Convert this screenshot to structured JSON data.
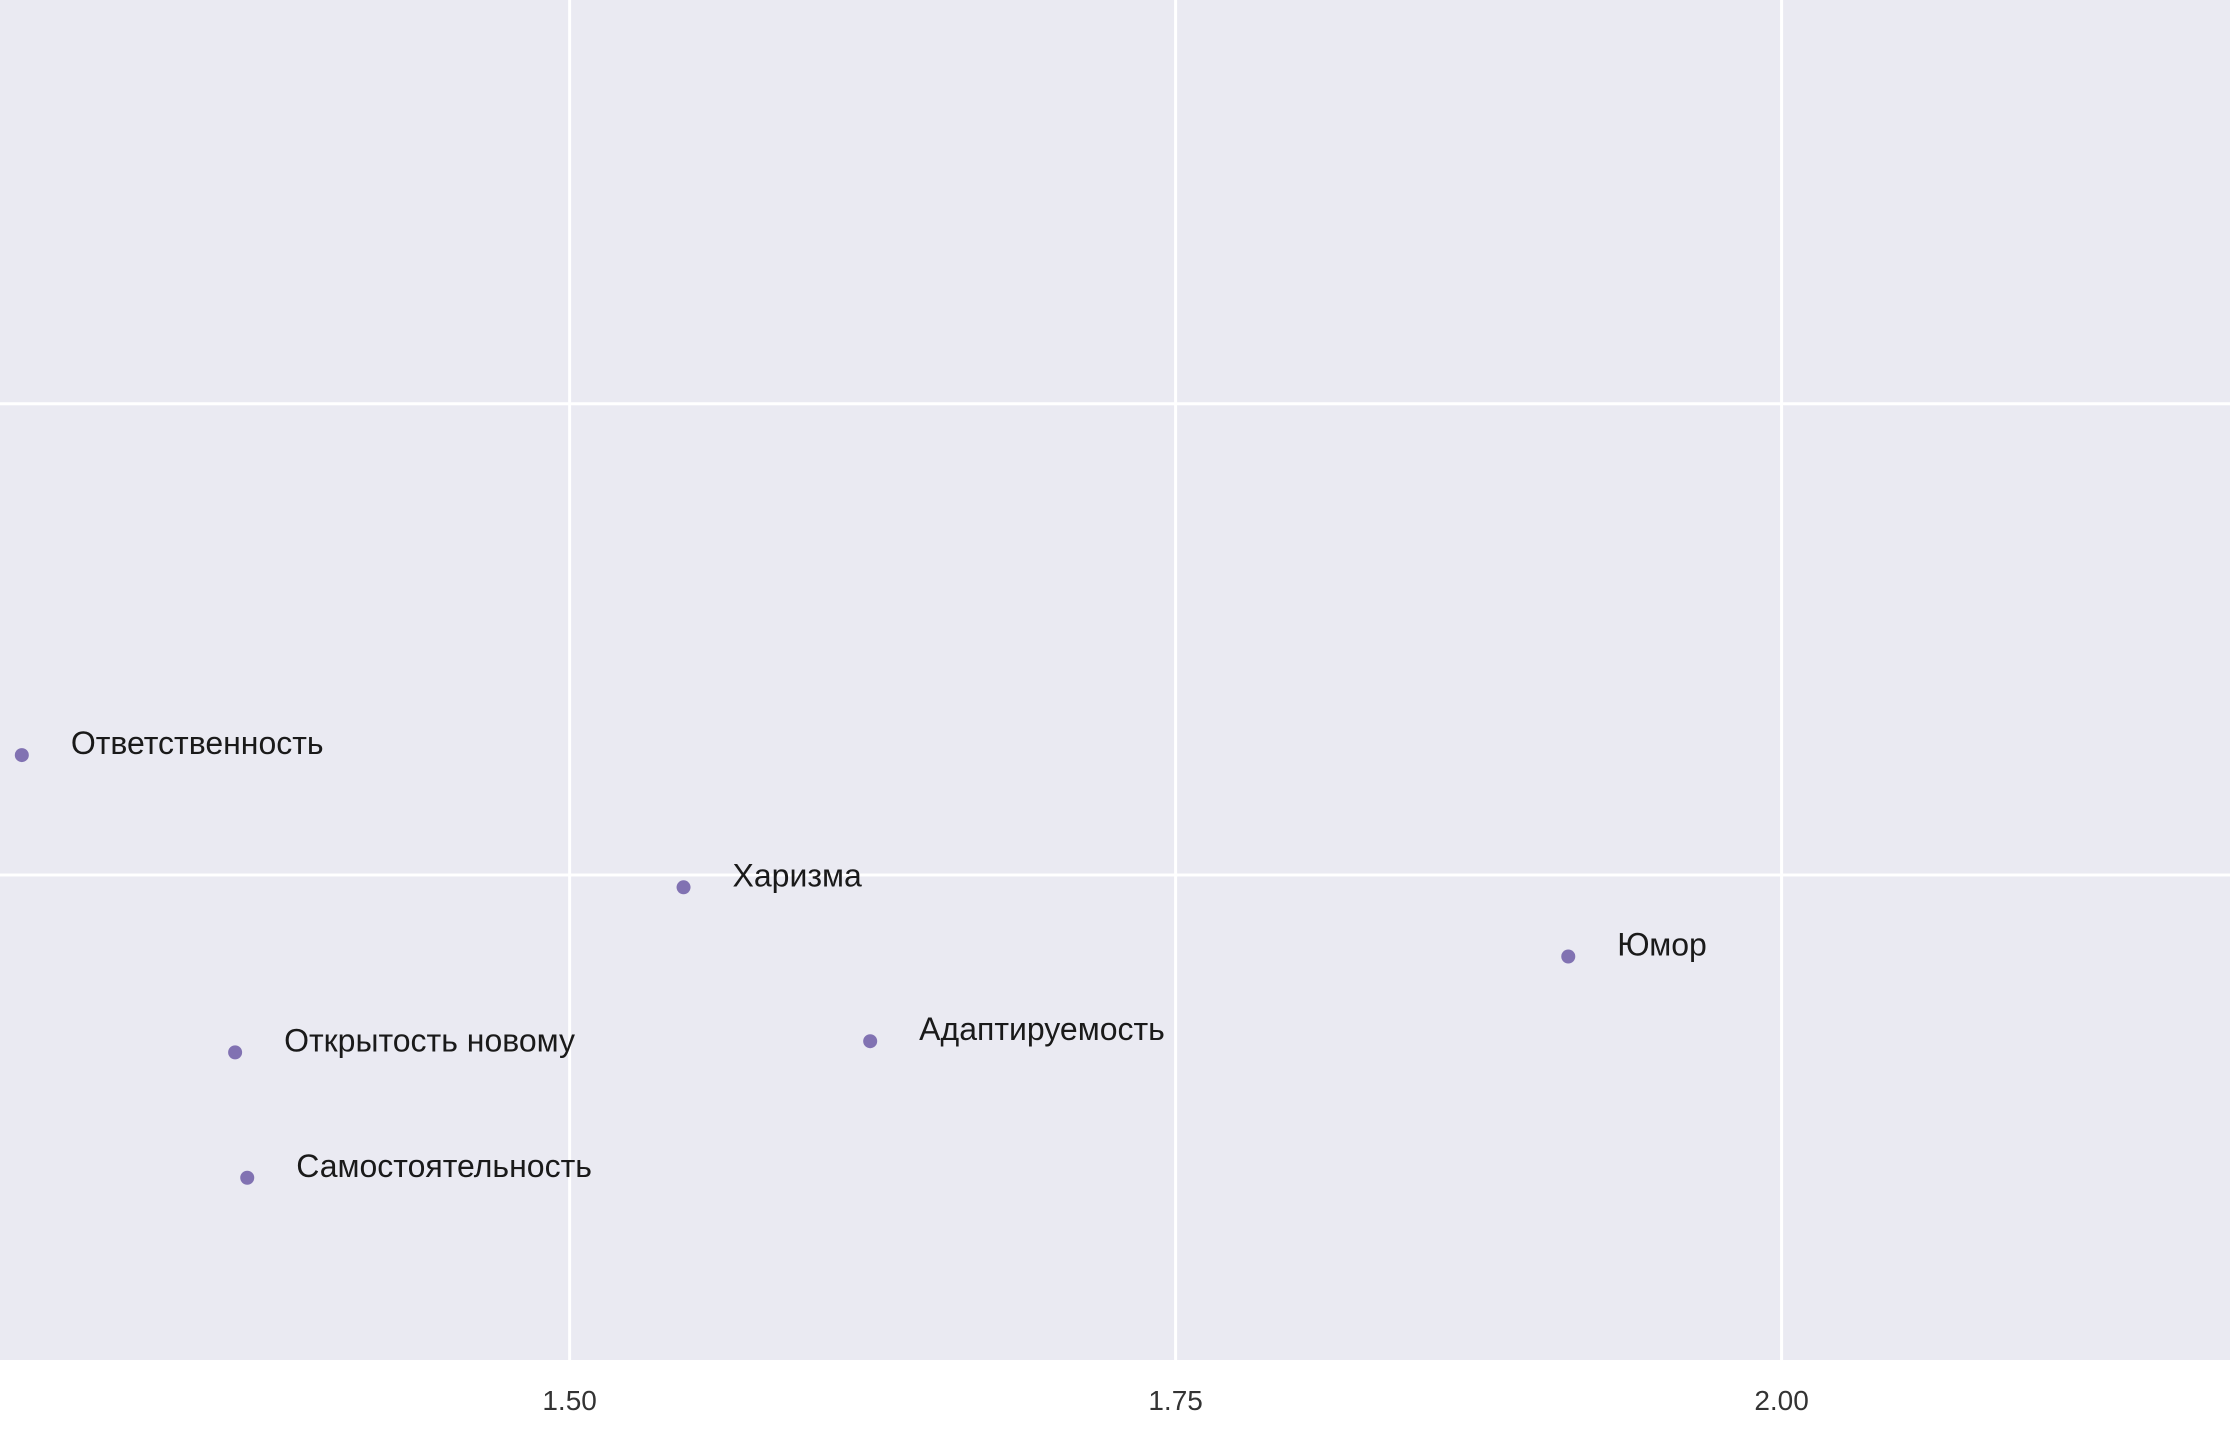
{
  "chart_data": {
    "type": "scatter",
    "title": "",
    "xlabel": "",
    "ylabel": "",
    "xlim": [
      1.265,
      2.185
    ],
    "ylim": [
      0.0,
      1.0
    ],
    "grid": true,
    "x_ticks": [
      {
        "value": 1.5,
        "label": "1.50"
      },
      {
        "value": 1.75,
        "label": "1.75"
      },
      {
        "value": 2.0,
        "label": "2.00"
      }
    ],
    "y_grid_values": [
      0.3566,
      0.7031
    ],
    "points": [
      {
        "label": "Ответственность",
        "x": 1.274,
        "y": 0.4448
      },
      {
        "label": "Харизма",
        "x": 1.547,
        "y": 0.3476
      },
      {
        "label": "Юмор",
        "x": 1.912,
        "y": 0.2967
      },
      {
        "label": "Открытость новому",
        "x": 1.362,
        "y": 0.2262
      },
      {
        "label": "Адаптируемость",
        "x": 1.624,
        "y": 0.2344
      },
      {
        "label": "Самостоятельность",
        "x": 1.367,
        "y": 0.134
      }
    ],
    "colors": {
      "background": "#eaeaf2",
      "grid": "#ffffff",
      "point": "#8172b2",
      "text": "#1a1a1a"
    }
  }
}
